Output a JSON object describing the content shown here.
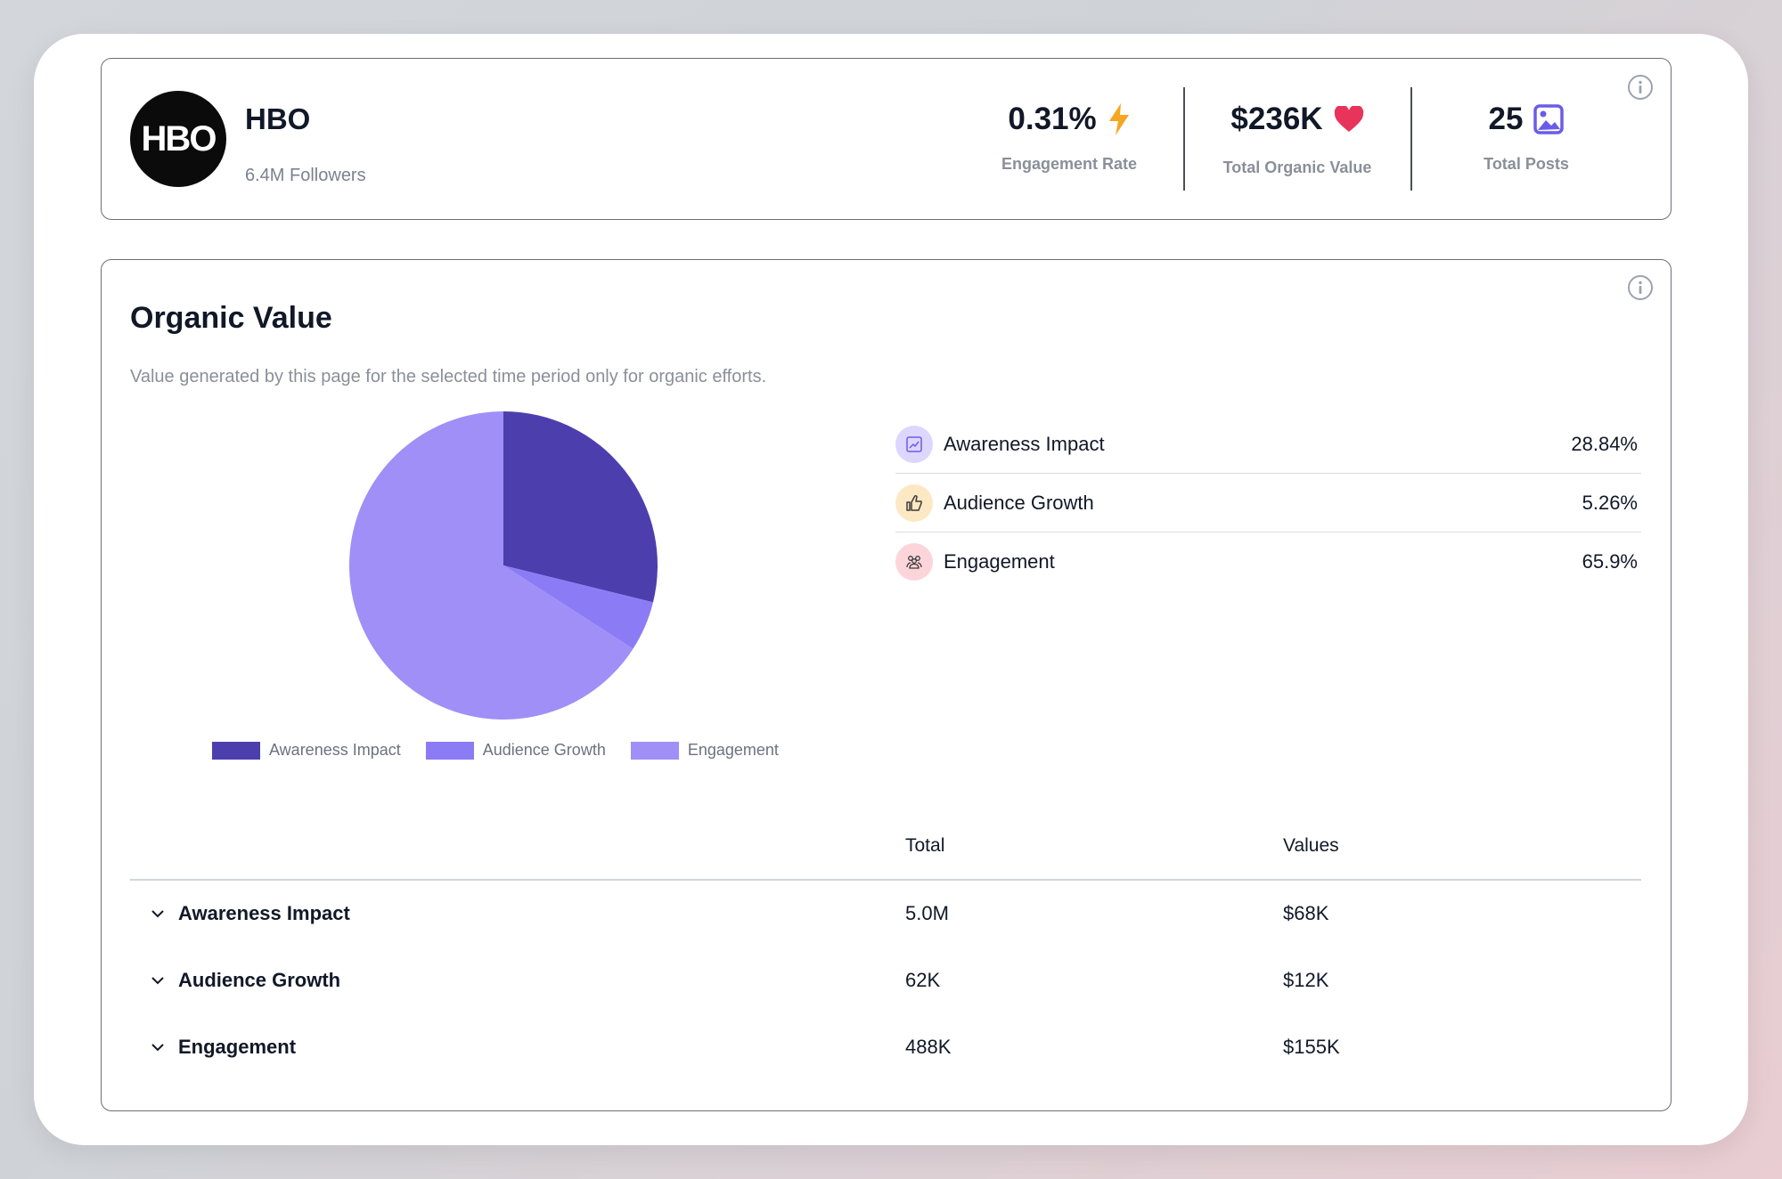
{
  "profile": {
    "logo_text": "HBO",
    "name": "HBO",
    "followers": "6.4M Followers"
  },
  "stats": [
    {
      "value": "0.31%",
      "label": "Engagement Rate",
      "icon": "lightning-icon",
      "color": "#f5a623"
    },
    {
      "value": "$236K",
      "label": "Total Organic Value",
      "icon": "heart-icon",
      "color": "#e8335a"
    },
    {
      "value": "25",
      "label": "Total Posts",
      "icon": "image-icon",
      "color": "#6b5ce7"
    }
  ],
  "organic_value": {
    "title": "Organic Value",
    "description": "Value generated by this page for the selected time period only for organic efforts."
  },
  "breakdown": [
    {
      "label": "Awareness Impact",
      "percent": "28.84%",
      "icon": "trend-chart-icon",
      "icon_bg": "#ddd6fe"
    },
    {
      "label": "Audience Growth",
      "percent": "5.26%",
      "icon": "thumbs-up-icon",
      "icon_bg": "#fde8c4"
    },
    {
      "label": "Engagement",
      "percent": "65.9%",
      "icon": "people-group-icon",
      "icon_bg": "#fcd5db"
    }
  ],
  "chart_data": {
    "type": "pie",
    "categories": [
      "Awareness Impact",
      "Audience Growth",
      "Engagement"
    ],
    "values": [
      28.84,
      5.26,
      65.9
    ],
    "colors": [
      "#4c3fad",
      "#8b7cf6",
      "#9f8ff7"
    ],
    "legend": "bottom"
  },
  "table": {
    "headers": {
      "total": "Total",
      "values": "Values"
    },
    "rows": [
      {
        "name": "Awareness Impact",
        "total": "5.0M",
        "value": "$68K"
      },
      {
        "name": "Audience Growth",
        "total": "62K",
        "value": "$12K"
      },
      {
        "name": "Engagement",
        "total": "488K",
        "value": "$155K"
      }
    ]
  }
}
